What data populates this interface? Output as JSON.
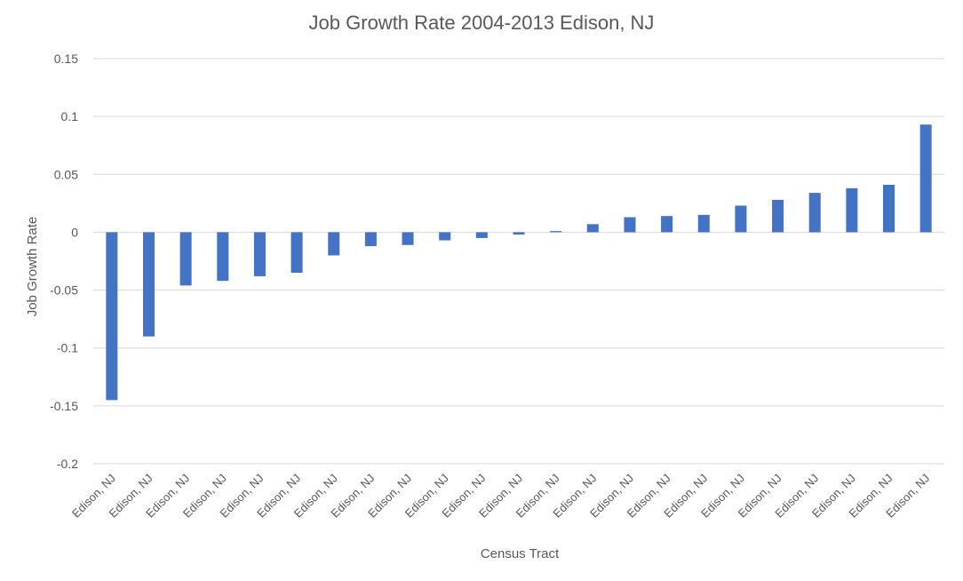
{
  "chart_data": {
    "type": "bar",
    "title": "Job Growth Rate 2004-2013 Edison, NJ",
    "xlabel": "Census Tract",
    "ylabel": "Job Growth Rate",
    "ylim": [
      -0.2,
      0.15
    ],
    "yticks": [
      0.15,
      0.1,
      0.05,
      0,
      -0.05,
      -0.1,
      -0.15,
      -0.2
    ],
    "ytick_labels": [
      "0.15",
      "0.1",
      "0.05",
      "0",
      "-0.05",
      "-0.1",
      "-0.15",
      "-0.2"
    ],
    "grid": true,
    "legend": "none",
    "bar_color": "#4472C4",
    "categories": [
      "Edison, NJ",
      "Edison, NJ",
      "Edison, NJ",
      "Edison, NJ",
      "Edison, NJ",
      "Edison, NJ",
      "Edison, NJ",
      "Edison, NJ",
      "Edison, NJ",
      "Edison, NJ",
      "Edison, NJ",
      "Edison, NJ",
      "Edison, NJ",
      "Edison, NJ",
      "Edison, NJ",
      "Edison, NJ",
      "Edison, NJ",
      "Edison, NJ",
      "Edison, NJ",
      "Edison, NJ",
      "Edison, NJ",
      "Edison, NJ",
      "Edison, NJ"
    ],
    "values": [
      -0.145,
      -0.09,
      -0.046,
      -0.042,
      -0.038,
      -0.035,
      -0.02,
      -0.012,
      -0.011,
      -0.007,
      -0.005,
      -0.002,
      0.001,
      0.007,
      0.013,
      0.014,
      0.015,
      0.023,
      0.028,
      0.034,
      0.038,
      0.041,
      0.093
    ]
  }
}
